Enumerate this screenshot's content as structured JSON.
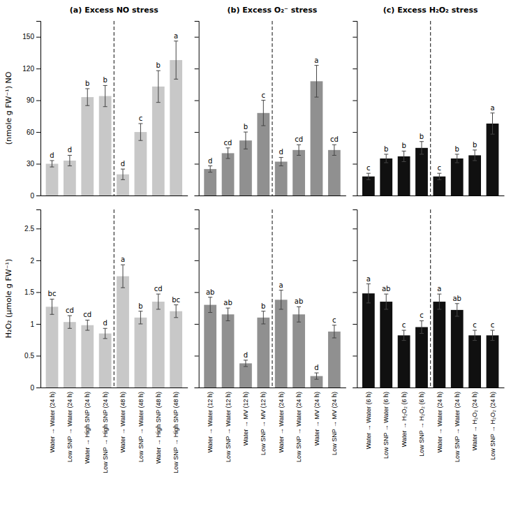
{
  "chart_data": [
    {
      "type": "bar",
      "title": "(a) Excess NO stress",
      "ylabel": "(nmole g FW⁻¹) NO",
      "categories": [
        null,
        null,
        null,
        null,
        null,
        null,
        null,
        null
      ],
      "values": [
        30,
        33,
        93,
        94,
        20,
        60,
        103,
        128
      ],
      "errors": [
        3,
        5,
        8,
        10,
        5,
        8,
        15,
        18
      ],
      "annotations": [
        "d",
        "d",
        "b",
        "b",
        "d",
        "c",
        "b",
        "a"
      ],
      "color": "#c8c8c8",
      "ylim": [
        0,
        165
      ],
      "yticks": [
        0,
        30,
        60,
        90,
        120,
        150
      ],
      "tick_labels": "y"
    },
    {
      "type": "bar",
      "title": "(b) Excess O₂⁻ stress",
      "categories": [
        null,
        null,
        null,
        null,
        null,
        null,
        null,
        null
      ],
      "values": [
        25,
        40,
        52,
        78,
        32,
        43,
        108,
        43
      ],
      "errors": [
        3,
        5,
        8,
        12,
        4,
        5,
        15,
        5
      ],
      "annotations": [
        "d",
        "cd",
        "b",
        "c",
        "d",
        "cd",
        "a",
        "cd"
      ],
      "color": "#909090",
      "ylim": [
        0,
        165
      ],
      "yticks": [
        0,
        30,
        60,
        90,
        120,
        150
      ],
      "tick_labels": false
    },
    {
      "type": "bar",
      "title": "(c) Excess H₂O₂ stress",
      "categories": [
        null,
        null,
        null,
        null,
        null,
        null,
        null,
        null
      ],
      "values": [
        18,
        35,
        37,
        45,
        18,
        35,
        38,
        68
      ],
      "errors": [
        3,
        4,
        5,
        6,
        3,
        4,
        5,
        10
      ],
      "annotations": [
        "c",
        "b",
        "b",
        "b",
        "c",
        "b",
        "b",
        "a"
      ],
      "color": "#101010",
      "ylim": [
        0,
        165
      ],
      "yticks": [
        0,
        30,
        60,
        90,
        120,
        150
      ],
      "tick_labels": false
    },
    {
      "type": "bar",
      "ylabel": "H₂O₂ (μmole g FW⁻¹)",
      "categories": [
        "Water → Water (24 h)",
        "Low SNP → Water (24 h)",
        "Water → High SNP (24 h)",
        "Low SNP → High SNP (24 h)",
        "Water → Water (48 h)",
        "Low SNP → Water (48 h)",
        "Water → High SNP (48 h)",
        "Low SNP → High SNP (48 h)"
      ],
      "values": [
        1.27,
        1.03,
        0.98,
        0.85,
        1.75,
        1.1,
        1.35,
        1.2
      ],
      "errors": [
        0.12,
        0.1,
        0.08,
        0.08,
        0.18,
        0.1,
        0.12,
        0.1
      ],
      "annotations": [
        "bc",
        "cd",
        "cd",
        "d",
        "a",
        "b",
        "cd",
        "bc"
      ],
      "color": "#c8c8c8",
      "ylim": [
        0,
        2.8
      ],
      "yticks": [
        0,
        0.5,
        1,
        1.5,
        2,
        2.5
      ]
    },
    {
      "type": "bar",
      "categories": [
        "Water → Water (12 h)",
        "Low SNP → Water (12 h)",
        "Water → MV (12 h)",
        "Low SNP → MV (12 h)",
        "Water → Water (24 h)",
        "Low SNP → Water (24 h)",
        "Water → MV (24 h)",
        "Low SNP → MV (24 h)"
      ],
      "values": [
        1.3,
        1.15,
        0.38,
        1.1,
        1.38,
        1.15,
        0.18,
        0.88
      ],
      "errors": [
        0.12,
        0.1,
        0.05,
        0.1,
        0.15,
        0.12,
        0.05,
        0.1
      ],
      "annotations": [
        "ab",
        "ab",
        "d",
        "b",
        "a",
        "ab",
        "d",
        "c"
      ],
      "color": "#909090",
      "ylim": [
        0,
        2.8
      ],
      "yticks": [
        0,
        0.5,
        1,
        1.5,
        2,
        2.5
      ],
      "tick_labels": "x"
    },
    {
      "type": "bar",
      "categories": [
        "Water → Water (6 h)",
        "Low SNP → Water (6 h)",
        "Water → H₂O₂ (6 h)",
        "Low SNP → H₂O₂ (6 h)",
        "Water → Water (24 h)",
        "Low SNP → Water (24 h)",
        "Water → H₂O₂ (24 h)",
        "Low SNP → H₂O₂ (24 h)"
      ],
      "values": [
        1.48,
        1.35,
        0.82,
        0.95,
        1.35,
        1.22,
        0.82,
        0.82
      ],
      "errors": [
        0.15,
        0.12,
        0.08,
        0.1,
        0.12,
        0.1,
        0.08,
        0.08
      ],
      "annotations": [
        "a",
        "ab",
        "c",
        "c",
        "a",
        "ab",
        "c",
        "c"
      ],
      "color": "#101010",
      "ylim": [
        0,
        2.8
      ],
      "yticks": [
        0,
        0.5,
        1,
        1.5,
        2,
        2.5
      ],
      "tick_labels": "x"
    }
  ]
}
